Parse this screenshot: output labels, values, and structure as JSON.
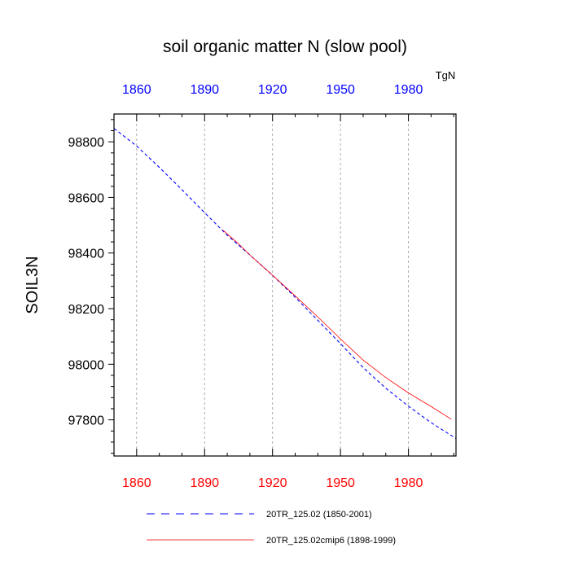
{
  "chart_data": {
    "type": "line",
    "title": "soil organic matter N (slow pool)",
    "ylabel": "SOIL3N",
    "units": "TgN",
    "xlim": [
      1850,
      2001
    ],
    "ylim": [
      97670,
      98900
    ],
    "x_ticks": [
      "1860",
      "1890",
      "1920",
      "1950",
      "1980"
    ],
    "y_ticks": [
      "97800",
      "98000",
      "98200",
      "98400",
      "98600",
      "98800"
    ],
    "gridlines": "vertical dashed at x ticks",
    "series": [
      {
        "name": "20TR_125.02 (1850-2001)",
        "color": "#0000ff",
        "style": "dashed",
        "x": [
          1850,
          1860,
          1870,
          1880,
          1890,
          1900,
          1910,
          1920,
          1930,
          1940,
          1950,
          1960,
          1970,
          1980,
          1990,
          2001
        ],
        "y": [
          98848,
          98785,
          98708,
          98628,
          98545,
          98464,
          98393,
          98320,
          98241,
          98158,
          98074,
          97988,
          97914,
          97849,
          97790,
          97733
        ]
      },
      {
        "name": "20TR_125.02cmip6 (1898-1999)",
        "color": "#ff0000",
        "style": "solid",
        "x": [
          1898,
          1905,
          1910,
          1920,
          1930,
          1940,
          1950,
          1960,
          1970,
          1980,
          1990,
          1999
        ],
        "y": [
          98483,
          98433,
          98393,
          98320,
          98246,
          98170,
          98091,
          98015,
          97952,
          97897,
          97848,
          97802
        ]
      }
    ]
  }
}
